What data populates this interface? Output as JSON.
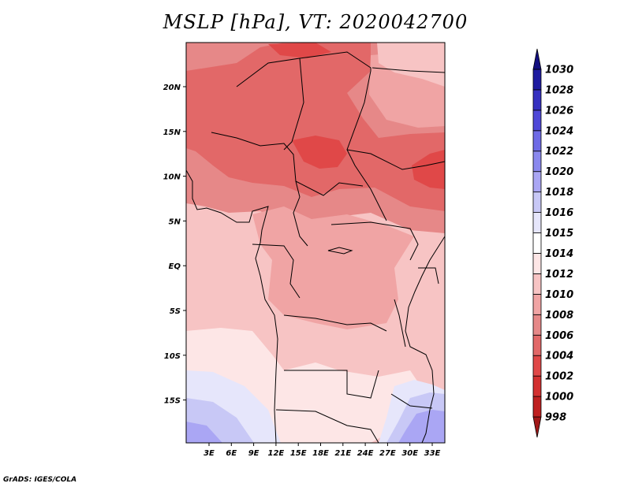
{
  "title": "MSLP [hPa], VT: 2020042700",
  "credit": "GrADS: IGES/COLA",
  "map": {
    "x_ticks": [
      "3E",
      "6E",
      "9E",
      "12E",
      "15E",
      "18E",
      "21E",
      "24E",
      "27E",
      "30E",
      "33E"
    ],
    "y_ticks": [
      "20N",
      "15N",
      "10N",
      "5N",
      "EQ",
      "5S",
      "10S",
      "15S"
    ]
  },
  "colorbar": {
    "levels": [
      "998",
      "1000",
      "1002",
      "1004",
      "1006",
      "1008",
      "1010",
      "1012",
      "1014",
      "1015",
      "1016",
      "1018",
      "1020",
      "1022",
      "1024",
      "1026",
      "1028",
      "1030"
    ],
    "colors": [
      "#a11818",
      "#bf2020",
      "#d33030",
      "#e04848",
      "#e26868",
      "#e68888",
      "#f0a4a4",
      "#f7c4c4",
      "#fde6e6",
      "#ffffff",
      "#e6e6fb",
      "#c8c8f6",
      "#aaa6f4",
      "#8a88ee",
      "#6e6ae6",
      "#4f48d8",
      "#3530c0",
      "#1e1ba0",
      "#130f80"
    ]
  },
  "field": {
    "units": "hPa",
    "regions": [
      {
        "level": "1008",
        "color": "#e68888"
      },
      {
        "level": "1006",
        "color": "#e26868"
      },
      {
        "level": "1004",
        "color": "#e04848"
      },
      {
        "level": "1010",
        "color": "#f0a4a4"
      },
      {
        "level": "1012",
        "color": "#f7c4c4"
      },
      {
        "level": "1014",
        "color": "#fde6e6"
      },
      {
        "level": "1016",
        "color": "#e6e6fb"
      },
      {
        "level": "1018",
        "color": "#c8c8f6"
      },
      {
        "level": "1020",
        "color": "#aaa6f4"
      }
    ]
  }
}
